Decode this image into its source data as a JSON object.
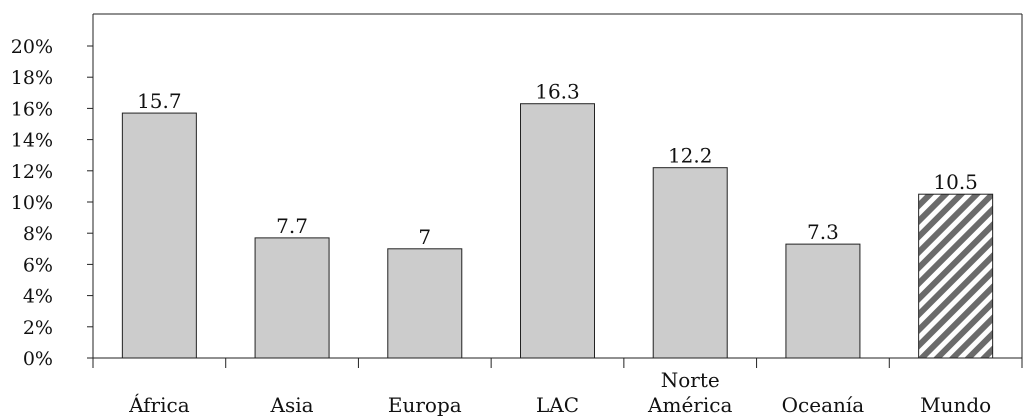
{
  "chart_data": {
    "type": "bar",
    "categories": [
      [
        "África"
      ],
      [
        "Asia"
      ],
      [
        "Europa"
      ],
      [
        "LAC"
      ],
      [
        "Norte",
        "América"
      ],
      [
        "Oceanía"
      ],
      [
        "Mundo"
      ]
    ],
    "values": [
      15.7,
      7.7,
      7,
      16.3,
      12.2,
      7.3,
      10.5
    ],
    "value_labels": [
      "15.7",
      "7.7",
      "7",
      "16.3",
      "12.2",
      "7.3",
      "10.5"
    ],
    "highlight_index": 6,
    "ylim": [
      0,
      22
    ],
    "yticks": [
      0,
      2,
      4,
      6,
      8,
      10,
      12,
      14,
      16,
      18,
      20
    ],
    "ytick_labels": [
      "0%",
      "2%",
      "4%",
      "6%",
      "8%",
      "10%",
      "12%",
      "14%",
      "16%",
      "18%",
      "20%"
    ],
    "title": "",
    "xlabel": "",
    "ylabel": "",
    "grid": false,
    "colors": {
      "bar_fill": "#cccccc",
      "bar_stroke": "#222222",
      "highlight_stripe": "#6b6b6b",
      "highlight_bg": "#ffffff"
    }
  }
}
